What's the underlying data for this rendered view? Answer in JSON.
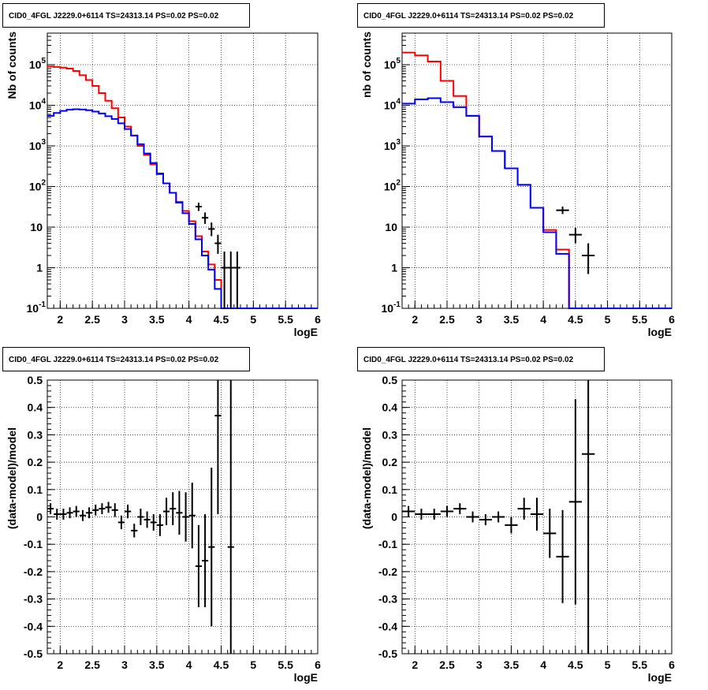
{
  "chart_data": [
    {
      "type": "histogram",
      "title": "CID0_4FGL J2229.0+6114 TS=24313.14 PS=0.02 PS=0.02",
      "xlabel": "logE",
      "ylabel": "Nb of counts",
      "xlim": [
        1.8,
        6.0
      ],
      "ylim": [
        0.1,
        600000
      ],
      "yscale": "log",
      "grid": true,
      "x_ticks": [
        "2",
        "2.5",
        "3",
        "3.5",
        "4",
        "4.5",
        "5",
        "5.5",
        "6"
      ],
      "y_ticks": [
        "10^{-1}",
        "1",
        "10",
        "10^{2}",
        "10^{3}",
        "10^{4}",
        "10^{5}"
      ],
      "bin_edges": [
        1.8,
        1.9,
        2.0,
        2.1,
        2.2,
        2.3,
        2.4,
        2.5,
        2.6,
        2.7,
        2.8,
        2.9,
        3.0,
        3.1,
        3.2,
        3.3,
        3.4,
        3.5,
        3.6,
        3.7,
        3.8,
        3.9,
        4.0,
        4.1,
        4.2,
        4.3,
        4.4,
        4.5,
        4.6,
        4.7,
        4.8,
        4.9,
        5.0,
        5.1,
        5.2,
        5.3,
        5.4,
        5.5,
        5.6,
        5.7,
        5.8,
        5.9,
        6.0
      ],
      "series": [
        {
          "name": "",
          "color": "#ff0000",
          "style": "step",
          "values": [
            90000,
            88000,
            85000,
            80000,
            70000,
            55000,
            42000,
            30000,
            20000,
            13000,
            8500,
            5000,
            3000,
            1800,
            1000,
            600,
            350,
            200,
            120,
            70,
            42,
            25,
            14,
            6,
            2.5,
            1.2,
            0.5,
            0.1,
            0.1,
            0.1,
            0.1,
            0.1,
            0.1,
            0.1,
            0.1,
            0.1,
            0.1,
            0.1,
            0.1,
            0.1,
            0.1,
            0.1
          ]
        },
        {
          "name": "",
          "color": "#0000ff",
          "style": "step",
          "values": [
            5500,
            6500,
            7300,
            7800,
            8000,
            7900,
            7600,
            7000,
            6300,
            5400,
            4600,
            3600,
            2600,
            1800,
            1100,
            650,
            380,
            210,
            120,
            70,
            40,
            22,
            12,
            5,
            2.0,
            0.9,
            0.3,
            0.1,
            0.1,
            0.1,
            0.1,
            0.1,
            0.1,
            0.1,
            0.1,
            0.1,
            0.1,
            0.1,
            0.1,
            0.1,
            0.1,
            0.1
          ]
        }
      ],
      "data_points": [
        {
          "x": 4.15,
          "y": 32,
          "ylo": 25,
          "yhi": 40
        },
        {
          "x": 4.25,
          "y": 17,
          "ylo": 12,
          "yhi": 23
        },
        {
          "x": 4.35,
          "y": 9,
          "ylo": 6,
          "yhi": 13
        },
        {
          "x": 4.45,
          "y": 4,
          "ylo": 2.2,
          "yhi": 6.5
        },
        {
          "x": 4.55,
          "y": 1,
          "ylo": 0.1,
          "yhi": 2.5
        },
        {
          "x": 4.65,
          "y": 1,
          "ylo": 0.1,
          "yhi": 2.5
        },
        {
          "x": 4.75,
          "y": 1,
          "ylo": 0.1,
          "yhi": 2.5
        }
      ]
    },
    {
      "type": "histogram",
      "title": "CID0_4FGL J2229.0+6114 TS=24313.14 PS=0.02 PS=0.02",
      "xlabel": "logE",
      "ylabel": "nb of counts",
      "xlim": [
        1.8,
        6.0
      ],
      "ylim": [
        0.1,
        600000
      ],
      "yscale": "log",
      "grid": true,
      "x_ticks": [
        "2",
        "2.5",
        "3",
        "3.5",
        "4",
        "4.5",
        "5",
        "5.5",
        "6"
      ],
      "y_ticks": [
        "10^{-1}",
        "1",
        "10",
        "10^{2}",
        "10^{3}",
        "10^{4}",
        "10^{5}"
      ],
      "bin_edges": [
        1.8,
        2.0,
        2.2,
        2.4,
        2.6,
        2.8,
        3.0,
        3.2,
        3.4,
        3.6,
        3.8,
        4.0,
        4.2,
        4.4,
        4.6,
        4.8,
        5.0,
        5.2,
        5.4,
        5.6,
        5.8,
        6.0
      ],
      "series": [
        {
          "name": "",
          "color": "#ff0000",
          "style": "step",
          "values": [
            200000,
            170000,
            120000,
            40000,
            17000,
            5500,
            1700,
            750,
            280,
            110,
            30,
            8.5,
            2.8,
            0.1,
            0.1,
            0.1,
            0.1,
            0.1,
            0.1,
            0.1,
            0.1
          ]
        },
        {
          "name": "",
          "color": "#0000ff",
          "style": "step",
          "values": [
            11000,
            14000,
            15000,
            12000,
            9000,
            5500,
            1700,
            750,
            280,
            110,
            30,
            7.5,
            2.2,
            0.1,
            0.1,
            0.1,
            0.1,
            0.1,
            0.1,
            0.1,
            0.1
          ]
        }
      ],
      "data_points": [
        {
          "x": 4.3,
          "y": 26,
          "ylo": 21,
          "yhi": 32
        },
        {
          "x": 4.5,
          "y": 6.5,
          "ylo": 4,
          "yhi": 9.5
        },
        {
          "x": 4.7,
          "y": 2,
          "ylo": 0.7,
          "yhi": 4
        }
      ]
    },
    {
      "type": "scatter",
      "title": "CID0_4FGL J2229.0+6114 TS=24313.14 PS=0.02 PS=0.02",
      "xlabel": "logE",
      "ylabel": "(data-model)/model",
      "xlim": [
        1.8,
        6.0
      ],
      "ylim": [
        -0.5,
        0.5
      ],
      "grid": true,
      "x_ticks": [
        "2",
        "2.5",
        "3",
        "3.5",
        "4",
        "4.5",
        "5",
        "5.5",
        "6"
      ],
      "y_ticks": [
        "-0.5",
        "-0.4",
        "-0.3",
        "-0.2",
        "-0.1",
        "0",
        "0.1",
        "0.2",
        "0.3",
        "0.4",
        "0.5"
      ],
      "points": [
        {
          "x": 1.85,
          "y": 0.03,
          "xerr": 0.05,
          "yerr": 0.02
        },
        {
          "x": 1.95,
          "y": 0.01,
          "xerr": 0.05,
          "yerr": 0.02
        },
        {
          "x": 2.05,
          "y": 0.01,
          "xerr": 0.05,
          "yerr": 0.02
        },
        {
          "x": 2.15,
          "y": 0.015,
          "xerr": 0.05,
          "yerr": 0.02
        },
        {
          "x": 2.25,
          "y": 0.02,
          "xerr": 0.05,
          "yerr": 0.02
        },
        {
          "x": 2.35,
          "y": 0.005,
          "xerr": 0.05,
          "yerr": 0.02
        },
        {
          "x": 2.45,
          "y": 0.015,
          "xerr": 0.05,
          "yerr": 0.02
        },
        {
          "x": 2.55,
          "y": 0.025,
          "xerr": 0.05,
          "yerr": 0.02
        },
        {
          "x": 2.65,
          "y": 0.03,
          "xerr": 0.05,
          "yerr": 0.02
        },
        {
          "x": 2.75,
          "y": 0.035,
          "xerr": 0.05,
          "yerr": 0.02
        },
        {
          "x": 2.85,
          "y": 0.025,
          "xerr": 0.05,
          "yerr": 0.025
        },
        {
          "x": 2.95,
          "y": -0.02,
          "xerr": 0.05,
          "yerr": 0.025
        },
        {
          "x": 3.05,
          "y": 0.02,
          "xerr": 0.05,
          "yerr": 0.025
        },
        {
          "x": 3.15,
          "y": -0.05,
          "xerr": 0.05,
          "yerr": 0.025
        },
        {
          "x": 3.25,
          "y": 0.0,
          "xerr": 0.05,
          "yerr": 0.03
        },
        {
          "x": 3.35,
          "y": -0.01,
          "xerr": 0.05,
          "yerr": 0.03
        },
        {
          "x": 3.45,
          "y": -0.02,
          "xerr": 0.05,
          "yerr": 0.03
        },
        {
          "x": 3.55,
          "y": -0.03,
          "xerr": 0.05,
          "yerr": 0.04
        },
        {
          "x": 3.65,
          "y": 0.02,
          "xerr": 0.05,
          "yerr": 0.05
        },
        {
          "x": 3.75,
          "y": 0.03,
          "xerr": 0.05,
          "yerr": 0.06
        },
        {
          "x": 3.85,
          "y": 0.015,
          "xerr": 0.05,
          "yerr": 0.08
        },
        {
          "x": 3.95,
          "y": 0.0,
          "xerr": 0.05,
          "yerr": 0.09
        },
        {
          "x": 4.05,
          "y": 0.005,
          "xerr": 0.05,
          "yerr": 0.12
        },
        {
          "x": 4.15,
          "y": -0.18,
          "xerr": 0.05,
          "yerr": 0.15
        },
        {
          "x": 4.25,
          "y": -0.16,
          "xerr": 0.05,
          "yerr": 0.17
        },
        {
          "x": 4.35,
          "y": -0.11,
          "xerr": 0.05,
          "yerr": 0.29
        },
        {
          "x": 4.45,
          "y": 0.37,
          "xerr": 0.05,
          "yerr": 0.36
        },
        {
          "x": 4.65,
          "y": -0.11,
          "xerr": 0.05,
          "yerr": 0.85
        }
      ]
    },
    {
      "type": "scatter",
      "title": "CID0_4FGL J2229.0+6114 TS=24313.14 PS=0.02 PS=0.02",
      "xlabel": "logE",
      "ylabel": "(data-model)/model",
      "xlim": [
        1.8,
        6.0
      ],
      "ylim": [
        -0.5,
        0.5
      ],
      "grid": true,
      "x_ticks": [
        "2",
        "2.5",
        "3",
        "3.5",
        "4",
        "4.5",
        "5",
        "5.5",
        "6"
      ],
      "y_ticks": [
        "-0.5",
        "-0.4",
        "-0.3",
        "-0.2",
        "-0.1",
        "0",
        "0.1",
        "0.2",
        "0.3",
        "0.4",
        "0.5"
      ],
      "points": [
        {
          "x": 1.9,
          "y": 0.02,
          "xerr": 0.1,
          "yerr": 0.02
        },
        {
          "x": 2.1,
          "y": 0.01,
          "xerr": 0.1,
          "yerr": 0.02
        },
        {
          "x": 2.3,
          "y": 0.01,
          "xerr": 0.1,
          "yerr": 0.02
        },
        {
          "x": 2.5,
          "y": 0.02,
          "xerr": 0.1,
          "yerr": 0.02
        },
        {
          "x": 2.7,
          "y": 0.03,
          "xerr": 0.1,
          "yerr": 0.02
        },
        {
          "x": 2.9,
          "y": 0.0,
          "xerr": 0.1,
          "yerr": 0.02
        },
        {
          "x": 3.1,
          "y": -0.01,
          "xerr": 0.1,
          "yerr": 0.02
        },
        {
          "x": 3.3,
          "y": 0.0,
          "xerr": 0.1,
          "yerr": 0.02
        },
        {
          "x": 3.5,
          "y": -0.03,
          "xerr": 0.1,
          "yerr": 0.03
        },
        {
          "x": 3.7,
          "y": 0.03,
          "xerr": 0.1,
          "yerr": 0.04
        },
        {
          "x": 3.9,
          "y": 0.01,
          "xerr": 0.1,
          "yerr": 0.06
        },
        {
          "x": 4.1,
          "y": -0.06,
          "xerr": 0.1,
          "yerr": 0.09
        },
        {
          "x": 4.3,
          "y": -0.145,
          "xerr": 0.1,
          "yerr": 0.17
        },
        {
          "x": 4.5,
          "y": 0.055,
          "xerr": 0.1,
          "yerr": 0.375
        },
        {
          "x": 4.7,
          "y": 0.23,
          "xerr": 0.1,
          "yerr": 0.73
        }
      ]
    }
  ]
}
